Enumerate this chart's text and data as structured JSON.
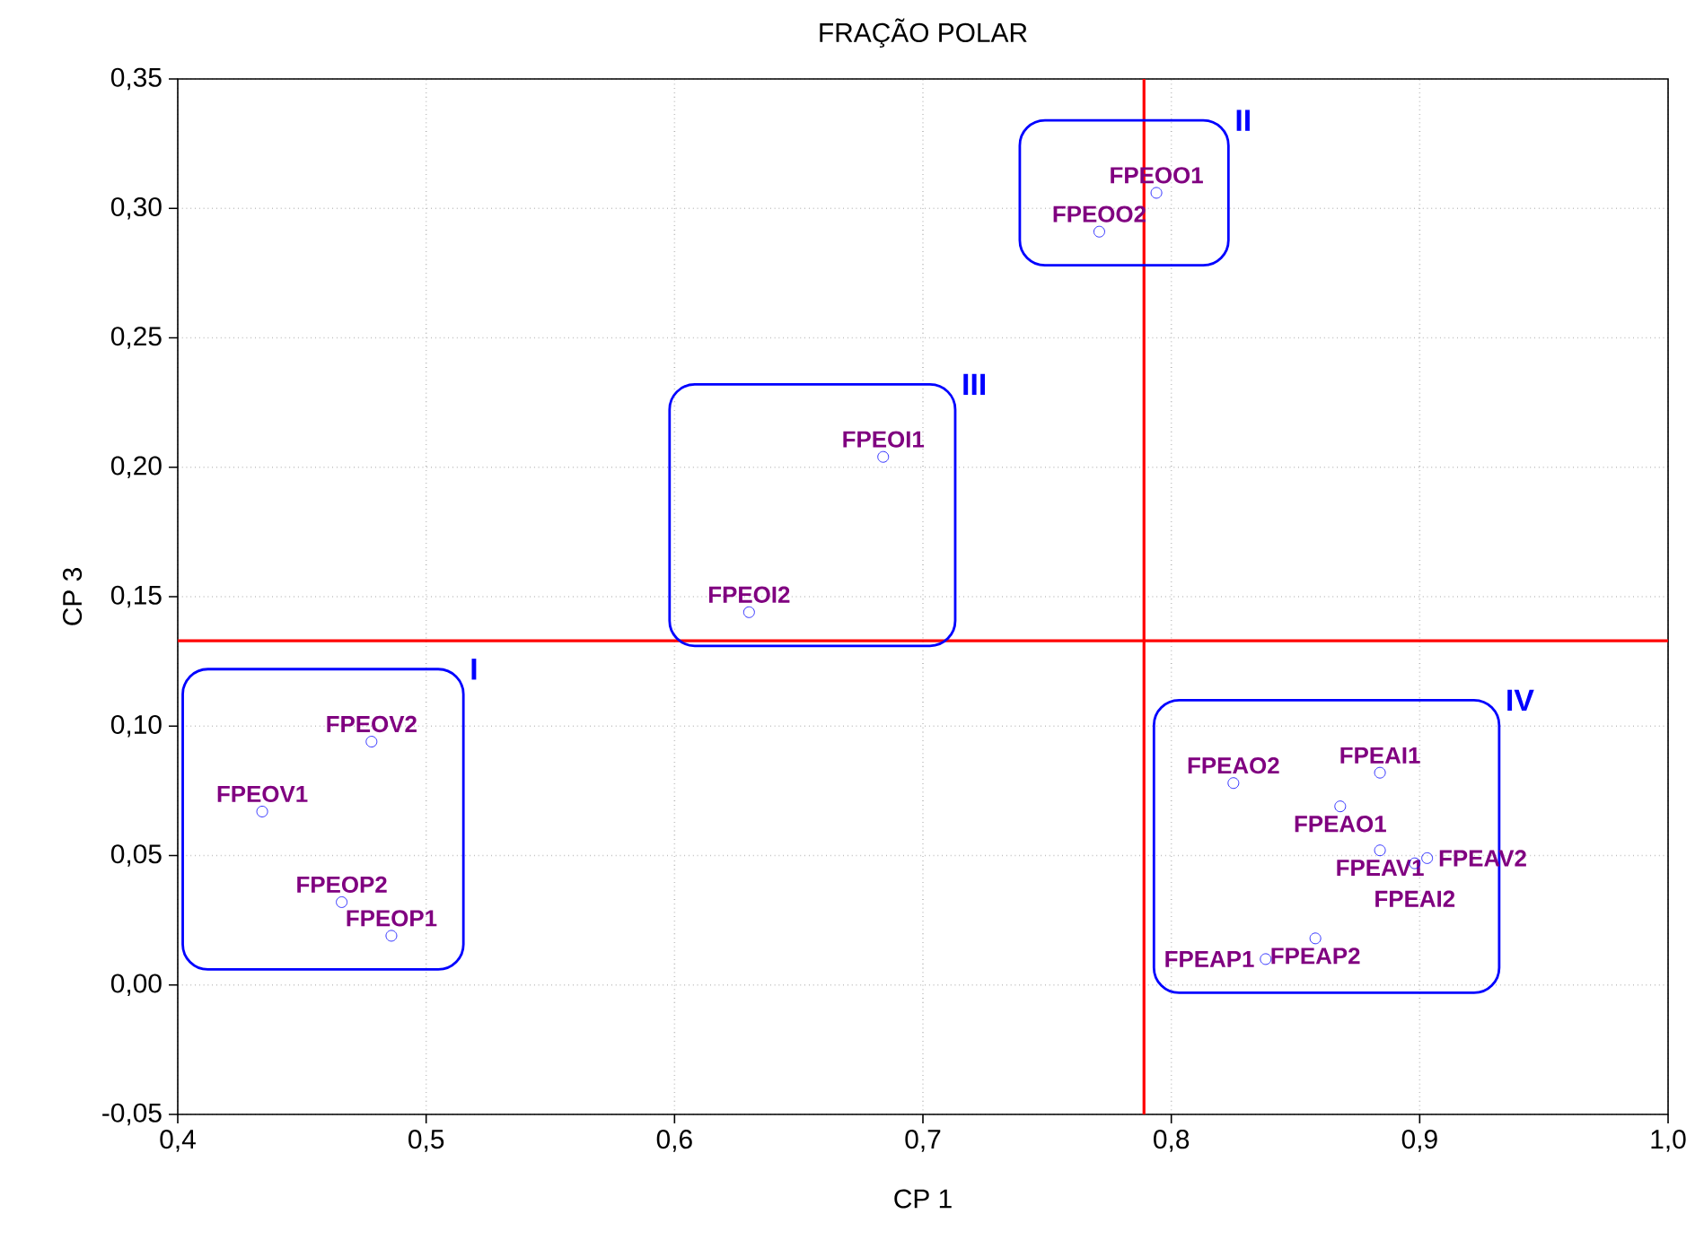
{
  "chart_data": {
    "type": "scatter",
    "title": "FRAÇÃO POLAR",
    "xlabel": "CP 1",
    "ylabel": "CP 3",
    "xlim": [
      0.4,
      1.0
    ],
    "ylim": [
      -0.05,
      0.35
    ],
    "xticks": [
      {
        "value": 0.4,
        "label": "0,4"
      },
      {
        "value": 0.5,
        "label": "0,5"
      },
      {
        "value": 0.6,
        "label": "0,6"
      },
      {
        "value": 0.7,
        "label": "0,7"
      },
      {
        "value": 0.8,
        "label": "0,8"
      },
      {
        "value": 0.9,
        "label": "0,9"
      },
      {
        "value": 1.0,
        "label": "1,0"
      }
    ],
    "yticks": [
      {
        "value": -0.05,
        "label": "-0,05"
      },
      {
        "value": 0.0,
        "label": "0,00"
      },
      {
        "value": 0.05,
        "label": "0,05"
      },
      {
        "value": 0.1,
        "label": "0,10"
      },
      {
        "value": 0.15,
        "label": "0,15"
      },
      {
        "value": 0.2,
        "label": "0,20"
      },
      {
        "value": 0.25,
        "label": "0,25"
      },
      {
        "value": 0.3,
        "label": "0,30"
      },
      {
        "value": 0.35,
        "label": "0,35"
      }
    ],
    "grid": true,
    "marker": "circle",
    "ref_lines": [
      {
        "axis": "x",
        "value": 0.789,
        "color": "#ff0000"
      },
      {
        "axis": "y",
        "value": 0.133,
        "color": "#ff0000"
      }
    ],
    "series": [
      {
        "name": "I",
        "color": "#0000ff",
        "x": [
          0.478,
          0.434,
          0.466,
          0.486
        ],
        "values": [
          0.094,
          0.067,
          0.032,
          0.019
        ],
        "value_labels": [
          "FPEOV2",
          "FPEOV1",
          "FPEOP2",
          "FPEOP1"
        ]
      },
      {
        "name": "II",
        "color": "#0000ff",
        "x": [
          0.794,
          0.771
        ],
        "values": [
          0.306,
          0.291
        ],
        "value_labels": [
          "FPEOO1",
          "FPEOO2"
        ]
      },
      {
        "name": "III",
        "color": "#0000ff",
        "x": [
          0.684,
          0.63
        ],
        "values": [
          0.204,
          0.144
        ],
        "value_labels": [
          "FPEOI1",
          "FPEOI2"
        ]
      },
      {
        "name": "IV",
        "color": "#0000ff",
        "x": [
          0.825,
          0.884,
          0.868,
          0.884,
          0.898,
          0.903,
          0.858,
          0.838
        ],
        "values": [
          0.078,
          0.082,
          0.069,
          0.052,
          0.047,
          0.049,
          0.018,
          0.01
        ],
        "value_labels": [
          "FPEAO2",
          "FPEAI1",
          "FPEAO1",
          "FPEAV1",
          "FPEAI2",
          "FPEAV2",
          "FPEAP2",
          "FPEAP1"
        ]
      }
    ]
  }
}
